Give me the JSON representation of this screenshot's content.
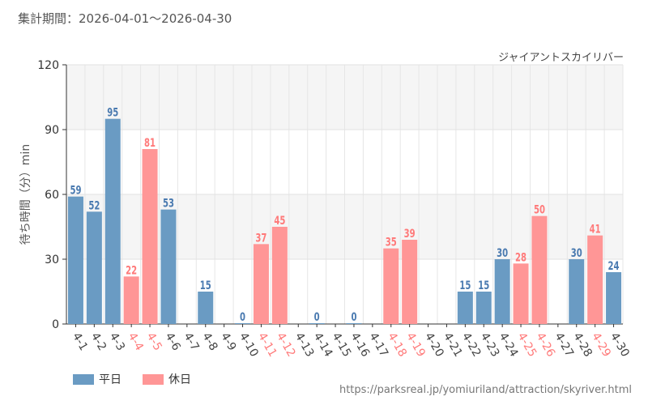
{
  "header": {
    "period_label": "集計期間：2026-04-01～2026-04-30",
    "attraction": "ジャイアントスカイリバー"
  },
  "footer": {
    "url": "https://parksreal.jp/yomiuriland/attraction/skyriver.html"
  },
  "legend": [
    {
      "label": "平日",
      "color": "#6a9bc3"
    },
    {
      "label": "休日",
      "color": "#ff9696"
    }
  ],
  "colors": {
    "weekday": "#6a9bc3",
    "holiday": "#ff9696",
    "weekday_label": "#4a7ab0",
    "holiday_label": "#ff7a7a",
    "tick_weekday": "#444444",
    "tick_holiday": "#ff7a7a"
  },
  "chart_data": {
    "type": "bar",
    "ylabel": "待ち時間（分）min",
    "ylim": [
      0,
      120
    ],
    "yticks": [
      0,
      30,
      60,
      90,
      120
    ],
    "grid": true,
    "legend_position": "bottom-left",
    "categories": [
      "4-1",
      "4-2",
      "4-3",
      "4-4",
      "4-5",
      "4-6",
      "4-7",
      "4-8",
      "4-9",
      "4-10",
      "4-11",
      "4-12",
      "4-13",
      "4-14",
      "4-15",
      "4-16",
      "4-17",
      "4-18",
      "4-19",
      "4-20",
      "4-21",
      "4-22",
      "4-23",
      "4-24",
      "4-25",
      "4-26",
      "4-27",
      "4-28",
      "4-29",
      "4-30"
    ],
    "day_type": [
      "平日",
      "平日",
      "平日",
      "休日",
      "休日",
      "平日",
      "平日",
      "平日",
      "平日",
      "平日",
      "休日",
      "休日",
      "平日",
      "平日",
      "平日",
      "平日",
      "平日",
      "休日",
      "休日",
      "平日",
      "平日",
      "平日",
      "平日",
      "平日",
      "休日",
      "休日",
      "平日",
      "平日",
      "休日",
      "平日"
    ],
    "values": [
      59,
      52,
      95,
      22,
      81,
      53,
      null,
      15,
      null,
      0,
      37,
      45,
      null,
      0,
      null,
      0,
      null,
      35,
      39,
      null,
      null,
      15,
      15,
      30,
      28,
      50,
      null,
      30,
      41,
      24
    ]
  }
}
